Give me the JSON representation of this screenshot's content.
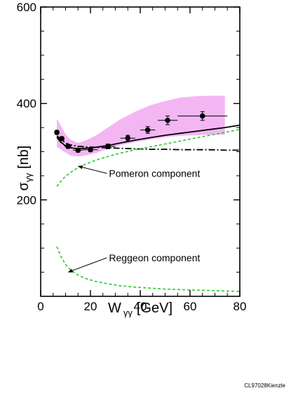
{
  "chart_data": {
    "type": "line",
    "x_axis": {
      "label_main": "W",
      "label_sub": "γγ",
      "label_unit": "[GeV]",
      "xlim": [
        0,
        80
      ],
      "ticks": [
        0,
        20,
        40,
        60,
        80
      ],
      "tick_labels": [
        "0",
        "20",
        "40",
        "60",
        "80"
      ]
    },
    "y_axis": {
      "label_main": "σ",
      "label_sub": "γγ",
      "label_unit": "[nb]",
      "ylim": [
        0,
        600
      ],
      "ticks": [
        200,
        400,
        600
      ],
      "tick_labels": [
        "200",
        "400",
        "600"
      ]
    },
    "grid": false,
    "band": {
      "color": "#f3b6f3",
      "x": [
        6.5,
        8,
        10,
        12,
        15,
        18,
        22,
        27,
        32,
        38,
        44,
        50,
        56,
        62,
        68,
        74
      ],
      "upper": [
        368,
        355,
        336,
        325,
        318,
        323,
        333,
        350,
        367,
        383,
        396,
        405,
        412,
        415,
        416,
        416
      ],
      "lower": [
        310,
        305,
        298,
        292,
        290,
        292,
        297,
        305,
        313,
        320,
        325,
        330,
        333,
        334,
        335,
        335
      ]
    },
    "series": [
      {
        "style": "solid",
        "color": "#000000",
        "x": [
          6.5,
          8,
          10,
          12,
          15,
          18,
          22,
          27,
          32,
          38,
          44,
          50,
          56,
          62,
          68,
          74,
          80
        ],
        "y": [
          330,
          320,
          312,
          308,
          306,
          307,
          309,
          313,
          318,
          324,
          329,
          334,
          338,
          342,
          346,
          350,
          355
        ]
      },
      {
        "style": "dash-dot",
        "color": "#000000",
        "x": [
          6.5,
          8,
          10,
          12,
          15,
          18,
          22,
          27,
          32,
          38,
          44,
          50,
          56,
          62,
          68,
          74,
          80
        ],
        "y": [
          333,
          326,
          318,
          314,
          311,
          310,
          309,
          308,
          307,
          306,
          305,
          305,
          304,
          304,
          304,
          303,
          303
        ]
      },
      {
        "style": "dashed",
        "color": "#33cc33",
        "x": [
          6.5,
          8,
          10,
          12,
          15,
          18,
          22,
          27,
          32,
          38,
          44,
          50,
          56,
          62,
          68,
          74,
          80
        ],
        "y": [
          228,
          238,
          249,
          257,
          267,
          274,
          282,
          290,
          297,
          304,
          310,
          316,
          322,
          328,
          334,
          340,
          346
        ]
      },
      {
        "style": "dashed",
        "color": "#33cc33",
        "x": [
          6.5,
          8,
          10,
          12,
          15,
          18,
          22,
          27,
          32,
          38,
          44,
          50,
          56,
          62,
          68,
          74,
          80
        ],
        "y": [
          103,
          84,
          66,
          55,
          44,
          37,
          31,
          26,
          22,
          19,
          17,
          15,
          14,
          13,
          12,
          11,
          10
        ]
      }
    ],
    "points": {
      "x": [
        6.5,
        8.5,
        11,
        15,
        20,
        27,
        35,
        43,
        51,
        65
      ],
      "y": [
        340,
        327,
        311,
        303,
        304,
        311,
        328,
        345,
        365,
        374
      ],
      "xerr": [
        0.5,
        1,
        1.5,
        2,
        3,
        3,
        3,
        3,
        4,
        10
      ],
      "yerr": [
        4,
        4,
        4,
        4,
        4,
        5,
        6,
        7,
        9,
        9
      ]
    },
    "annotations": [
      {
        "text": "Pomeron component",
        "arrow_to": [
          15,
          270
        ]
      },
      {
        "text": "Reggeon component",
        "arrow_to": [
          11,
          50
        ]
      }
    ],
    "credit": "CL97028Kienzle"
  }
}
